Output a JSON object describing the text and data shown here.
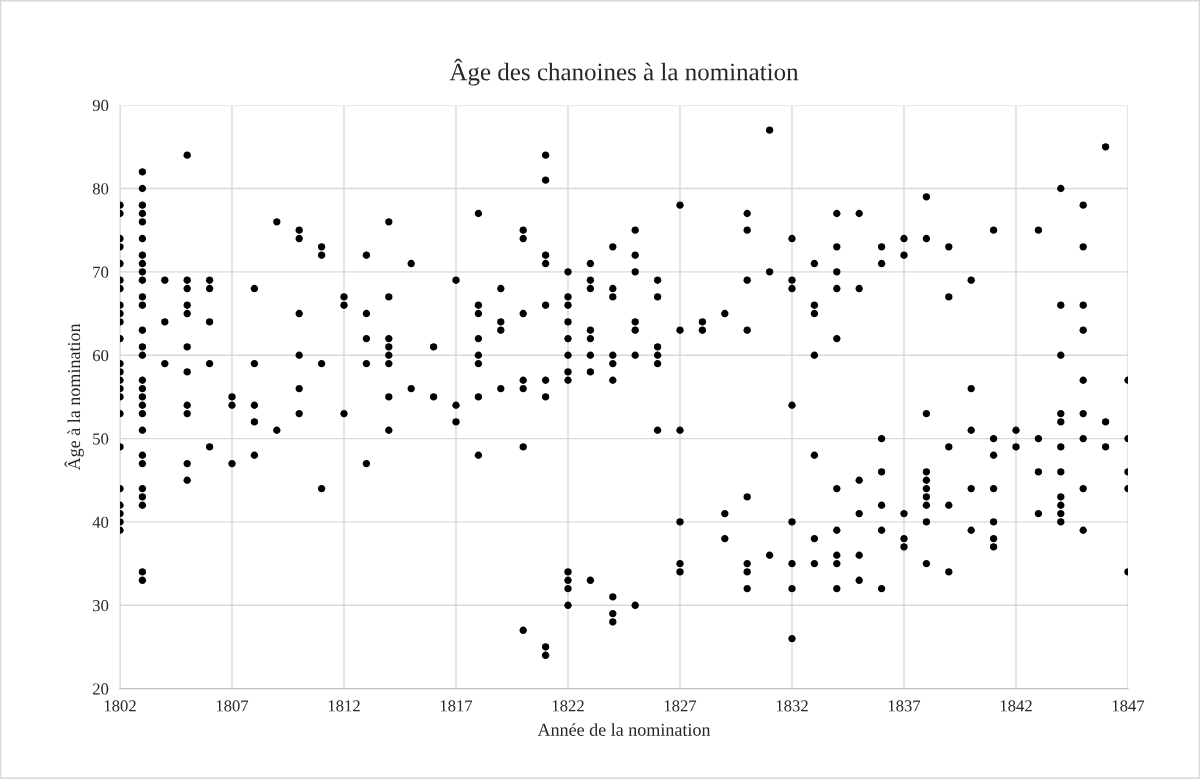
{
  "chart_data": {
    "type": "scatter",
    "title": "Âge des chanoines à la nomination",
    "xlabel": "Année de la nomination",
    "ylabel": "Âge à la nomination",
    "xlim": [
      1802,
      1847
    ],
    "xticks": [
      1802,
      1807,
      1812,
      1817,
      1822,
      1827,
      1832,
      1837,
      1842,
      1847
    ],
    "ylim": [
      20,
      90
    ],
    "yticks": [
      20,
      30,
      40,
      50,
      60,
      70,
      80,
      90
    ],
    "grid": true,
    "marker": "circle",
    "series": [
      {
        "color": "#000000",
        "x": [
          1802,
          1802,
          1802,
          1802,
          1802,
          1802,
          1802,
          1802,
          1802,
          1802,
          1802,
          1802,
          1802,
          1802,
          1802,
          1802,
          1802,
          1802,
          1802,
          1802,
          1802,
          1802,
          1802,
          1803,
          1803,
          1803,
          1803,
          1803,
          1803,
          1803,
          1803,
          1803,
          1803,
          1803,
          1803,
          1803,
          1803,
          1803,
          1803,
          1803,
          1803,
          1803,
          1803,
          1803,
          1803,
          1803,
          1803,
          1803,
          1803,
          1803,
          1803,
          1804,
          1804,
          1804,
          1805,
          1805,
          1805,
          1805,
          1805,
          1805,
          1805,
          1805,
          1805,
          1805,
          1805,
          1806,
          1806,
          1806,
          1806,
          1806,
          1807,
          1807,
          1807,
          1808,
          1808,
          1808,
          1808,
          1808,
          1809,
          1809,
          1810,
          1810,
          1810,
          1810,
          1810,
          1810,
          1811,
          1811,
          1811,
          1811,
          1812,
          1812,
          1812,
          1813,
          1813,
          1813,
          1813,
          1813,
          1814,
          1814,
          1814,
          1814,
          1814,
          1814,
          1814,
          1814,
          1815,
          1815,
          1816,
          1816,
          1817,
          1817,
          1817,
          1818,
          1818,
          1818,
          1818,
          1818,
          1818,
          1818,
          1818,
          1819,
          1819,
          1819,
          1819,
          1820,
          1820,
          1820,
          1820,
          1820,
          1820,
          1820,
          1821,
          1821,
          1821,
          1821,
          1821,
          1821,
          1821,
          1821,
          1821,
          1822,
          1822,
          1822,
          1822,
          1822,
          1822,
          1822,
          1822,
          1822,
          1822,
          1822,
          1822,
          1823,
          1823,
          1823,
          1823,
          1823,
          1823,
          1823,
          1823,
          1824,
          1824,
          1824,
          1824,
          1824,
          1824,
          1824,
          1824,
          1824,
          1825,
          1825,
          1825,
          1825,
          1825,
          1825,
          1825,
          1826,
          1826,
          1826,
          1826,
          1826,
          1826,
          1827,
          1827,
          1827,
          1827,
          1827,
          1827,
          1828,
          1828,
          1829,
          1829,
          1829,
          1830,
          1830,
          1830,
          1830,
          1830,
          1830,
          1830,
          1830,
          1831,
          1831,
          1831,
          1832,
          1832,
          1832,
          1832,
          1832,
          1832,
          1832,
          1832,
          1833,
          1833,
          1833,
          1833,
          1833,
          1833,
          1833,
          1834,
          1834,
          1834,
          1834,
          1834,
          1834,
          1834,
          1834,
          1834,
          1834,
          1835,
          1835,
          1835,
          1835,
          1835,
          1835,
          1836,
          1836,
          1836,
          1836,
          1836,
          1836,
          1836,
          1837,
          1837,
          1837,
          1837,
          1837,
          1838,
          1838,
          1838,
          1838,
          1838,
          1838,
          1838,
          1838,
          1838,
          1838,
          1839,
          1839,
          1839,
          1839,
          1839,
          1840,
          1840,
          1840,
          1840,
          1840,
          1841,
          1841,
          1841,
          1841,
          1841,
          1841,
          1841,
          1842,
          1842,
          1843,
          1843,
          1843,
          1843,
          1844,
          1844,
          1844,
          1844,
          1844,
          1844,
          1844,
          1844,
          1844,
          1844,
          1844,
          1845,
          1845,
          1845,
          1845,
          1845,
          1845,
          1845,
          1845,
          1845,
          1846,
          1846,
          1846,
          1847,
          1847,
          1847,
          1847,
          1847
        ],
        "values": [
          78,
          77,
          74,
          73,
          71,
          69,
          68,
          66,
          65,
          64,
          62,
          59,
          58,
          57,
          56,
          55,
          53,
          49,
          44,
          42,
          41,
          40,
          39,
          82,
          80,
          78,
          77,
          76,
          74,
          72,
          71,
          70,
          69,
          67,
          66,
          63,
          61,
          60,
          57,
          56,
          55,
          54,
          53,
          51,
          48,
          47,
          44,
          43,
          42,
          34,
          33,
          69,
          64,
          59,
          84,
          69,
          68,
          66,
          65,
          61,
          58,
          54,
          53,
          47,
          45,
          69,
          68,
          64,
          59,
          49,
          55,
          54,
          47,
          68,
          59,
          54,
          52,
          48,
          76,
          51,
          75,
          74,
          65,
          60,
          56,
          53,
          73,
          72,
          59,
          44,
          67,
          66,
          53,
          72,
          65,
          62,
          59,
          47,
          76,
          67,
          62,
          61,
          60,
          59,
          55,
          51,
          71,
          56,
          61,
          55,
          69,
          54,
          52,
          77,
          66,
          65,
          62,
          60,
          59,
          55,
          48,
          68,
          64,
          63,
          56,
          75,
          74,
          65,
          57,
          56,
          49,
          27,
          84,
          81,
          72,
          71,
          66,
          57,
          55,
          25,
          24,
          70,
          67,
          66,
          64,
          62,
          60,
          58,
          57,
          34,
          33,
          32,
          30,
          71,
          69,
          68,
          63,
          62,
          60,
          58,
          33,
          73,
          68,
          67,
          60,
          59,
          57,
          31,
          29,
          28,
          75,
          72,
          70,
          64,
          63,
          60,
          30,
          69,
          67,
          61,
          60,
          59,
          51,
          78,
          63,
          51,
          40,
          35,
          34,
          64,
          63,
          65,
          41,
          38,
          77,
          75,
          69,
          63,
          43,
          35,
          34,
          32,
          87,
          70,
          36,
          74,
          69,
          68,
          54,
          40,
          35,
          32,
          26,
          71,
          66,
          65,
          60,
          48,
          38,
          35,
          77,
          73,
          70,
          68,
          62,
          44,
          39,
          36,
          35,
          32,
          77,
          68,
          45,
          41,
          36,
          33,
          73,
          71,
          50,
          46,
          42,
          39,
          32,
          74,
          72,
          41,
          38,
          37,
          79,
          74,
          53,
          46,
          45,
          44,
          43,
          42,
          40,
          35,
          73,
          67,
          49,
          42,
          34,
          69,
          56,
          51,
          44,
          39,
          75,
          50,
          48,
          44,
          40,
          38,
          37,
          51,
          49,
          75,
          50,
          46,
          41,
          80,
          66,
          60,
          53,
          52,
          49,
          46,
          43,
          42,
          41,
          40,
          78,
          73,
          66,
          63,
          57,
          53,
          50,
          44,
          39,
          85,
          52,
          49,
          57,
          50,
          46,
          44,
          34
        ]
      }
    ]
  }
}
